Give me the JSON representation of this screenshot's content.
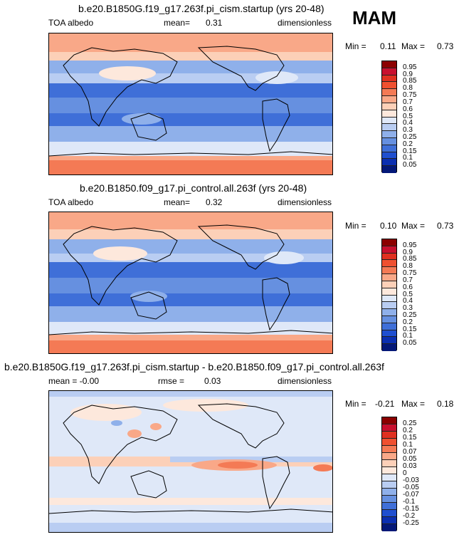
{
  "season": "MAM",
  "panels": [
    {
      "title": "b.e20.B1850G.f19_g17.263f.pi_cism.startup (yrs 20-48)",
      "left": "TOA albedo",
      "mid_label": "mean=",
      "mid_value": "0.31",
      "right": "dimensionless",
      "min_label": "Min =",
      "min": "0.11",
      "max_label": "Max =",
      "max": "0.73",
      "ticks": [
        "0.95",
        "0.9",
        "0.85",
        "0.8",
        "0.75",
        "0.7",
        "0.6",
        "0.5",
        "0.4",
        "0.3",
        "0.25",
        "0.2",
        "0.15",
        "0.1",
        "0.05"
      ],
      "colors": [
        "#8b0000",
        "#c8102e",
        "#e03020",
        "#ef5030",
        "#f47a55",
        "#f9a888",
        "#fcd0b8",
        "#fde8dc",
        "#dfe8f8",
        "#b9cdf2",
        "#8fb0ea",
        "#6690e0",
        "#3f6fd8",
        "#1f4fd0",
        "#0b2fb0",
        "#041878"
      ]
    },
    {
      "title": "b.e20.B1850.f09_g17.pi_control.all.263f (yrs 20-48)",
      "left": "TOA albedo",
      "mid_label": "mean=",
      "mid_value": "0.32",
      "right": "dimensionless",
      "min_label": "Min =",
      "min": "0.10",
      "max_label": "Max =",
      "max": "0.73",
      "ticks": [
        "0.95",
        "0.9",
        "0.85",
        "0.8",
        "0.75",
        "0.7",
        "0.6",
        "0.5",
        "0.4",
        "0.3",
        "0.25",
        "0.2",
        "0.15",
        "0.1",
        "0.05"
      ],
      "colors": [
        "#8b0000",
        "#c8102e",
        "#e03020",
        "#ef5030",
        "#f47a55",
        "#f9a888",
        "#fcd0b8",
        "#fde8dc",
        "#dfe8f8",
        "#b9cdf2",
        "#8fb0ea",
        "#6690e0",
        "#3f6fd8",
        "#1f4fd0",
        "#0b2fb0",
        "#041878"
      ]
    },
    {
      "title": "b.e20.B1850G.f19_g17.263f.pi_cism.startup - b.e20.B1850.f09_g17.pi_control.all.263f",
      "left": "mean =   -0.00",
      "mid_label": "rmse =",
      "mid_value": "0.03",
      "right": "dimensionless",
      "min_label": "Min =",
      "min": "-0.21",
      "max_label": "Max =",
      "max": "0.18",
      "ticks": [
        "0.25",
        "0.2",
        "0.15",
        "0.1",
        "0.07",
        "0.05",
        "0.03",
        "0",
        "-0.03",
        "-0.05",
        "-0.07",
        "-0.1",
        "-0.15",
        "-0.2",
        "-0.25"
      ],
      "colors": [
        "#8b0000",
        "#c8102e",
        "#e03020",
        "#ef5030",
        "#f47a55",
        "#f9a888",
        "#fcd0b8",
        "#fde8dc",
        "#dfe8f8",
        "#b9cdf2",
        "#8fb0ea",
        "#6690e0",
        "#3f6fd8",
        "#1f4fd0",
        "#0b2fb0",
        "#041878"
      ]
    }
  ]
}
